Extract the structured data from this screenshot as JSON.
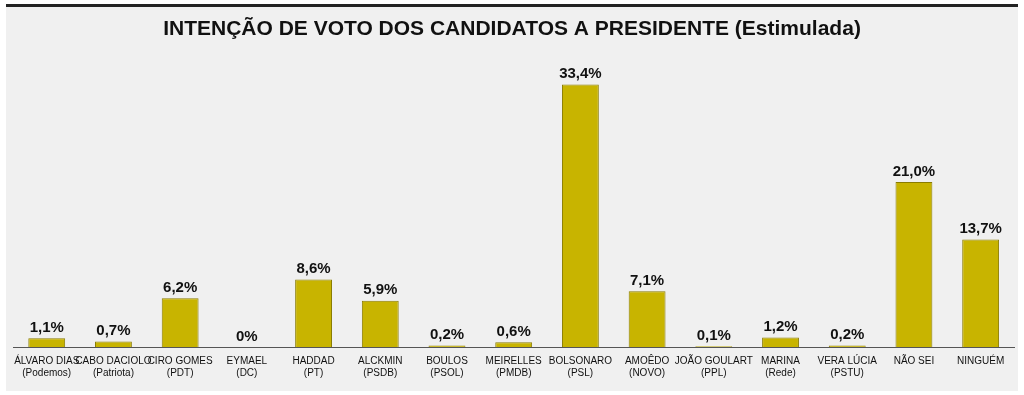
{
  "chart_data": {
    "type": "bar",
    "title": "INTENÇÃO DE VOTO DOS CANDIDATOS A PRESIDENTE (Estimulada)",
    "categories": [
      "ÁLVARO DIAS\n(Podemos)",
      "CABO DACIOLO\n(Patriota)",
      "CIRO GOMES\n(PDT)",
      "EYMAEL\n(DC)",
      "HADDAD\n(PT)",
      "ALCKMIN\n(PSDB)",
      "BOULOS\n(PSOL)",
      "MEIRELLES\n(PMDB)",
      "BOLSONARO\n(PSL)",
      "AMOÊDO\n(NOVO)",
      "JOÃO GOULART\n(PPL)",
      "MARINA\n(Rede)",
      "VERA LÚCIA\n(PSTU)",
      "NÃO SEI",
      "NINGUÉM"
    ],
    "values": [
      1.1,
      0.7,
      6.2,
      0,
      8.6,
      5.9,
      0.2,
      0.6,
      33.4,
      7.1,
      0.1,
      1.2,
      0.2,
      21.0,
      13.7
    ],
    "value_labels": [
      "1,1%",
      "0,7%",
      "6,2%",
      "0%",
      "8,6%",
      "5,9%",
      "0,2%",
      "0,6%",
      "33,4%",
      "7,1%",
      "0,1%",
      "1,2%",
      "0,2%",
      "21,0%",
      "13,7%"
    ],
    "color": "#c8b400",
    "ylim": [
      0,
      36
    ],
    "grid": false,
    "data_labels": true,
    "tick_labels": "x"
  }
}
